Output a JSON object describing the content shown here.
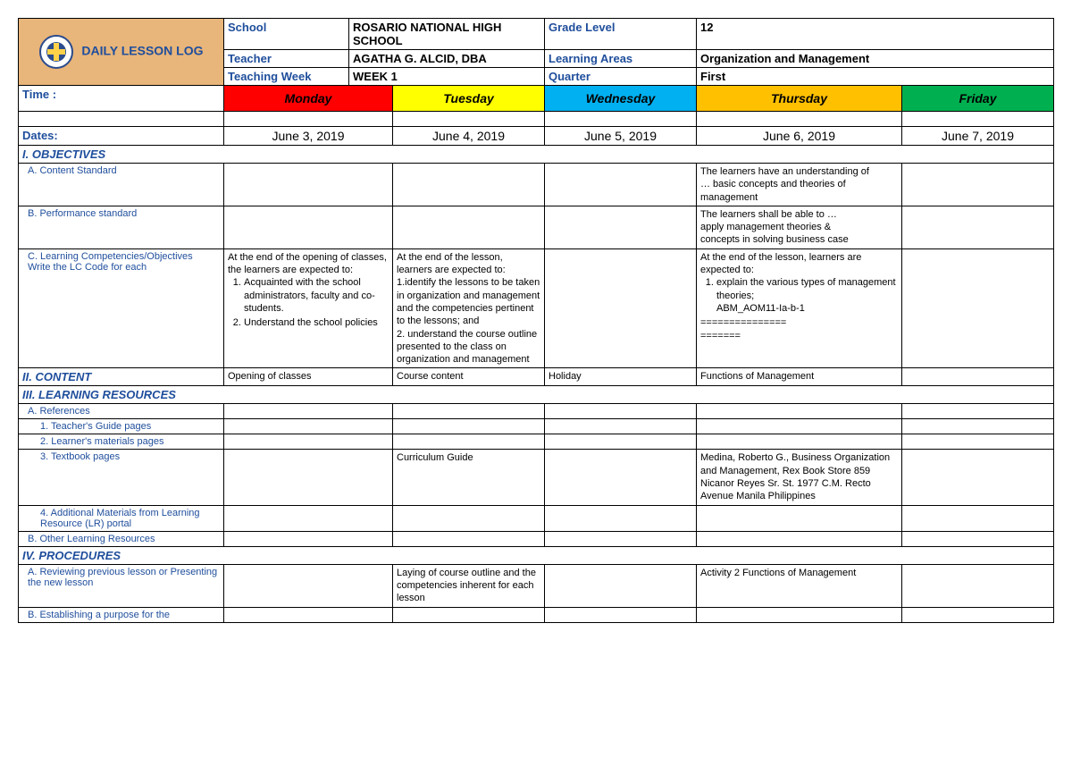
{
  "header": {
    "title": "DAILY LESSON  LOG",
    "fields": [
      {
        "label": "School",
        "value": "ROSARIO NATIONAL HIGH SCHOOL",
        "label2": "Grade Level",
        "value2": "12"
      },
      {
        "label": "Teacher",
        "value": "AGATHA G. ALCID, DBA",
        "label2": "Learning Areas",
        "value2": "Organization and Management"
      },
      {
        "label": "Teaching  Week",
        "value": "WEEK 1",
        "label2": "Quarter",
        "value2": "First"
      }
    ]
  },
  "days": {
    "time_label": "Time :",
    "headers": [
      {
        "name": "Monday",
        "bg": "#ff0000",
        "fg": "#000000"
      },
      {
        "name": "Tuesday",
        "bg": "#ffff00",
        "fg": "#000000"
      },
      {
        "name": "Wednesday",
        "bg": "#00b0f0",
        "fg": "#000000"
      },
      {
        "name": "Thursday",
        "bg": "#ffc000",
        "fg": "#000000"
      },
      {
        "name": "Friday",
        "bg": "#00b050",
        "fg": "#000000"
      }
    ],
    "dates_label": "Dates:",
    "dates": [
      "June 3, 2019",
      "June 4, 2019",
      "June 5, 2019",
      "June 6, 2019",
      "June 7, 2019"
    ]
  },
  "sections": {
    "objectives": "I. OBJECTIVES",
    "content": "II. CONTENT",
    "resources": "III. LEARNING RESOURCES",
    "procedures": "IV. PROCEDURES"
  },
  "rows": {
    "content_standard": {
      "label": "A. Content Standard",
      "thu": "The learners have an understanding of\n… basic concepts and theories of management"
    },
    "performance_standard": {
      "label": "B. Performance standard",
      "thu": "The learners shall be able to …\napply management theories &\nconcepts in solving business case"
    },
    "competencies": {
      "label": "C. Learning Competencies/Objectives\n    Write the LC Code for each",
      "mon_intro": "At the end of the opening of classes, the learners are expected to:",
      "mon_items": [
        "Acquainted with the school administrators, faculty and co-students.",
        "Understand the school policies"
      ],
      "tue": "At the end of the lesson, learners are expected to:\n1.identify the lessons to be taken in organization and management and the competencies pertinent to the lessons; and\n2. understand the course outline presented to the class on organization and management",
      "thu_intro": "At the end of the lesson, learners are expected to:",
      "thu_items": [
        "explain the various types of management theories;\nABM_AOM11-Ia-b-1"
      ],
      "thu_tail": "===============\n======="
    },
    "content_row": {
      "mon": "Opening of classes",
      "tue": "Course content",
      "wed": "Holiday",
      "thu": "Functions of Management"
    },
    "references": "A. References",
    "teacher_guide": "1. Teacher's Guide pages",
    "learner_mat": "2. Learner's materials pages",
    "textbook": {
      "label": "3. Textbook pages",
      "tue": "Curriculum Guide",
      "thu": "Medina, Roberto G., Business Organization and Management, Rex Book Store 859 Nicanor Reyes Sr. St. 1977 C.M. Recto Avenue Manila Philippines"
    },
    "additional_mat": "4. Additional Materials from Learning Resource (LR) portal",
    "other_res": "B. Other Learning Resources",
    "procA": {
      "label": "A. Reviewing previous lesson or Presenting the new lesson",
      "tue": "Laying of course outline and the competencies inherent for each lesson",
      "thu": "Activity 2 Functions of Management"
    },
    "procB": "B. Establishing a purpose for the"
  },
  "colors": {
    "header_bg": "#e8b57a",
    "link_blue": "#1f4e9c"
  }
}
